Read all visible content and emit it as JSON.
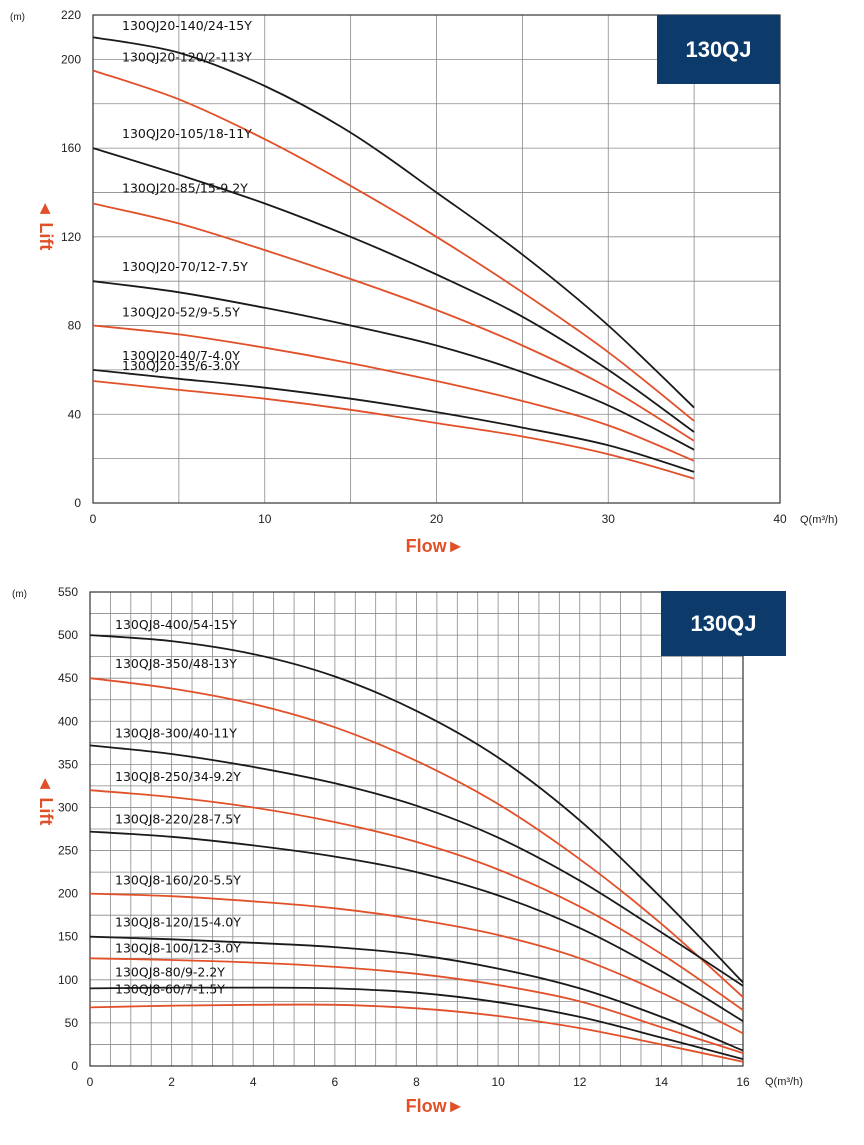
{
  "chart_data": [
    {
      "type": "line",
      "badge": "130QJ",
      "y_unit_label": "(m)",
      "x_unit_label": "Q(m³/h)",
      "ylabel": "◄ Lift",
      "xlabel": "Flow►",
      "xlim": [
        0,
        40
      ],
      "ylim": [
        0,
        220
      ],
      "x_ticks": [
        0,
        10,
        20,
        30,
        40
      ],
      "y_ticks": [
        0,
        40,
        80,
        120,
        160,
        200,
        220
      ],
      "grid": true,
      "series": [
        {
          "name": "130QJ20-140/24-15Y",
          "color": "#1a1a1a",
          "x": [
            0,
            5,
            10,
            15,
            20,
            25,
            30,
            35
          ],
          "y": [
            210,
            203,
            188,
            167,
            140,
            112,
            80,
            43
          ]
        },
        {
          "name": "130QJ20-120/2-113Y",
          "color": "#e2502a",
          "x": [
            0,
            5,
            10,
            15,
            20,
            25,
            30,
            35
          ],
          "y": [
            195,
            182,
            164,
            143,
            120,
            95,
            68,
            37
          ]
        },
        {
          "name": "130QJ20-105/18-11Y",
          "color": "#1a1a1a",
          "x": [
            0,
            5,
            10,
            15,
            20,
            25,
            30,
            35
          ],
          "y": [
            160,
            148,
            135,
            120,
            103,
            84,
            60,
            32
          ]
        },
        {
          "name": "130QJ20-85/15-9.2Y",
          "color": "#e2502a",
          "x": [
            0,
            5,
            10,
            15,
            20,
            25,
            30,
            35
          ],
          "y": [
            135,
            126,
            114,
            101,
            87,
            71,
            52,
            28
          ]
        },
        {
          "name": "130QJ20-70/12-7.5Y",
          "color": "#1a1a1a",
          "x": [
            0,
            5,
            10,
            15,
            20,
            25,
            30,
            35
          ],
          "y": [
            100,
            95,
            88,
            80,
            71,
            59,
            44,
            24
          ]
        },
        {
          "name": "130QJ20-52/9-5.5Y",
          "color": "#e2502a",
          "x": [
            0,
            5,
            10,
            15,
            20,
            25,
            30,
            35
          ],
          "y": [
            80,
            76,
            70,
            63,
            55,
            46,
            35,
            19
          ]
        },
        {
          "name": "130QJ20-40/7-4.0Y",
          "color": "#1a1a1a",
          "x": [
            0,
            5,
            10,
            15,
            20,
            25,
            30,
            35
          ],
          "y": [
            60,
            56,
            52,
            47,
            41,
            34,
            26,
            14
          ]
        },
        {
          "name": "130QJ20-35/6-3.0Y",
          "color": "#e2502a",
          "x": [
            0,
            5,
            10,
            15,
            20,
            25,
            30,
            35
          ],
          "y": [
            55,
            51,
            47,
            42,
            36,
            30,
            22,
            11
          ]
        }
      ]
    },
    {
      "type": "line",
      "badge": "130QJ",
      "y_unit_label": "(m)",
      "x_unit_label": "Q(m³/h)",
      "ylabel": "◄ Lift",
      "xlabel": "Flow►",
      "xlim": [
        0,
        16
      ],
      "ylim": [
        0,
        550
      ],
      "x_ticks": [
        0,
        2,
        4,
        6,
        8,
        10,
        12,
        14,
        16
      ],
      "y_ticks": [
        0,
        50,
        100,
        150,
        200,
        250,
        300,
        350,
        400,
        450,
        500,
        550
      ],
      "grid": true,
      "series": [
        {
          "name": "130QJ8-400/54-15Y",
          "color": "#1a1a1a",
          "x": [
            0,
            2,
            4,
            6,
            8,
            10,
            12,
            14,
            16
          ],
          "y": [
            500,
            493,
            478,
            452,
            412,
            358,
            285,
            195,
            97
          ]
        },
        {
          "name": "130QJ8-350/48-13Y",
          "color": "#e2502a",
          "x": [
            0,
            2,
            4,
            6,
            8,
            10,
            12,
            14,
            16
          ],
          "y": [
            450,
            438,
            420,
            393,
            354,
            304,
            240,
            165,
            80
          ]
        },
        {
          "name": "130QJ8-300/40-11Y",
          "color": "#1a1a1a",
          "x": [
            0,
            2,
            4,
            6,
            8,
            10,
            12,
            14,
            16
          ],
          "y": [
            372,
            362,
            347,
            328,
            302,
            265,
            215,
            155,
            93
          ]
        },
        {
          "name": "130QJ8-250/34-9.2Y",
          "color": "#e2502a",
          "x": [
            0,
            2,
            4,
            6,
            8,
            10,
            12,
            14,
            16
          ],
          "y": [
            320,
            312,
            300,
            283,
            260,
            228,
            185,
            130,
            65
          ]
        },
        {
          "name": "130QJ8-220/28-7.5Y",
          "color": "#1a1a1a",
          "x": [
            0,
            2,
            4,
            6,
            8,
            10,
            12,
            14,
            16
          ],
          "y": [
            272,
            266,
            256,
            243,
            225,
            198,
            160,
            110,
            52
          ]
        },
        {
          "name": "130QJ8-160/20-5.5Y",
          "color": "#e2502a",
          "x": [
            0,
            2,
            4,
            6,
            8,
            10,
            12,
            14,
            16
          ],
          "y": [
            200,
            197,
            191,
            183,
            170,
            152,
            125,
            85,
            38
          ]
        },
        {
          "name": "130QJ8-120/15-4.0Y",
          "color": "#1a1a1a",
          "x": [
            0,
            2,
            4,
            6,
            8,
            10,
            12,
            14,
            16
          ],
          "y": [
            150,
            147,
            143,
            138,
            129,
            113,
            90,
            57,
            18
          ]
        },
        {
          "name": "130QJ8-100/12-3.0Y",
          "color": "#e2502a",
          "x": [
            0,
            2,
            4,
            6,
            8,
            10,
            12,
            14,
            16
          ],
          "y": [
            125,
            123,
            120,
            115,
            107,
            94,
            75,
            45,
            15
          ]
        },
        {
          "name": "130QJ8-80/9-2.2Y",
          "color": "#1a1a1a",
          "x": [
            0,
            2,
            4,
            6,
            8,
            10,
            12,
            14,
            16
          ],
          "y": [
            90,
            91,
            91,
            90,
            85,
            74,
            57,
            33,
            8
          ]
        },
        {
          "name": "130QJ8-60/7-1.5Y",
          "color": "#e2502a",
          "x": [
            0,
            2,
            4,
            6,
            8,
            10,
            12,
            14,
            16
          ],
          "y": [
            68,
            70,
            71,
            71,
            67,
            58,
            44,
            25,
            5
          ]
        }
      ]
    }
  ]
}
